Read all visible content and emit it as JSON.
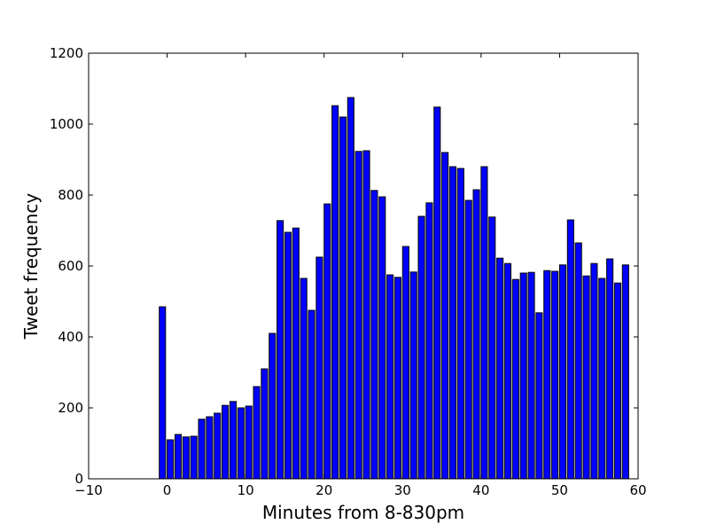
{
  "chart_data": {
    "type": "bar",
    "xlabel": "Minutes from 8-830pm",
    "ylabel": "Tweet frequency",
    "xlim": [
      -10,
      60
    ],
    "ylim": [
      0,
      1200
    ],
    "xticks": [
      -10,
      0,
      10,
      20,
      30,
      40,
      50,
      60
    ],
    "yticks": [
      0,
      200,
      400,
      600,
      800,
      1000,
      1200
    ],
    "grid": false,
    "bar_color": "#0000ff",
    "edge_color": "#000000",
    "x": [
      -1,
      0,
      1,
      2,
      3,
      4,
      5,
      6,
      7,
      8,
      9,
      10,
      11,
      12,
      13,
      14,
      15,
      16,
      17,
      18,
      19,
      20,
      21,
      22,
      23,
      24,
      25,
      26,
      27,
      28,
      29,
      30,
      31,
      32,
      33,
      34,
      35,
      36,
      37,
      38,
      39,
      40,
      41,
      42,
      43,
      44,
      45,
      46,
      47,
      48,
      49,
      50,
      51,
      52,
      53,
      54,
      55,
      56,
      57,
      58
    ],
    "values": [
      485,
      110,
      125,
      118,
      120,
      168,
      175,
      185,
      207,
      218,
      200,
      205,
      260,
      310,
      410,
      728,
      695,
      707,
      565,
      475,
      625,
      775,
      1052,
      1020,
      1075,
      923,
      925,
      813,
      795,
      575,
      568,
      655,
      583,
      740,
      778,
      1048,
      920,
      880,
      875,
      785,
      815,
      880,
      738,
      622,
      607,
      562,
      580,
      582,
      468,
      587,
      585,
      603,
      730,
      665,
      572,
      607,
      565,
      620,
      552,
      603
    ]
  }
}
